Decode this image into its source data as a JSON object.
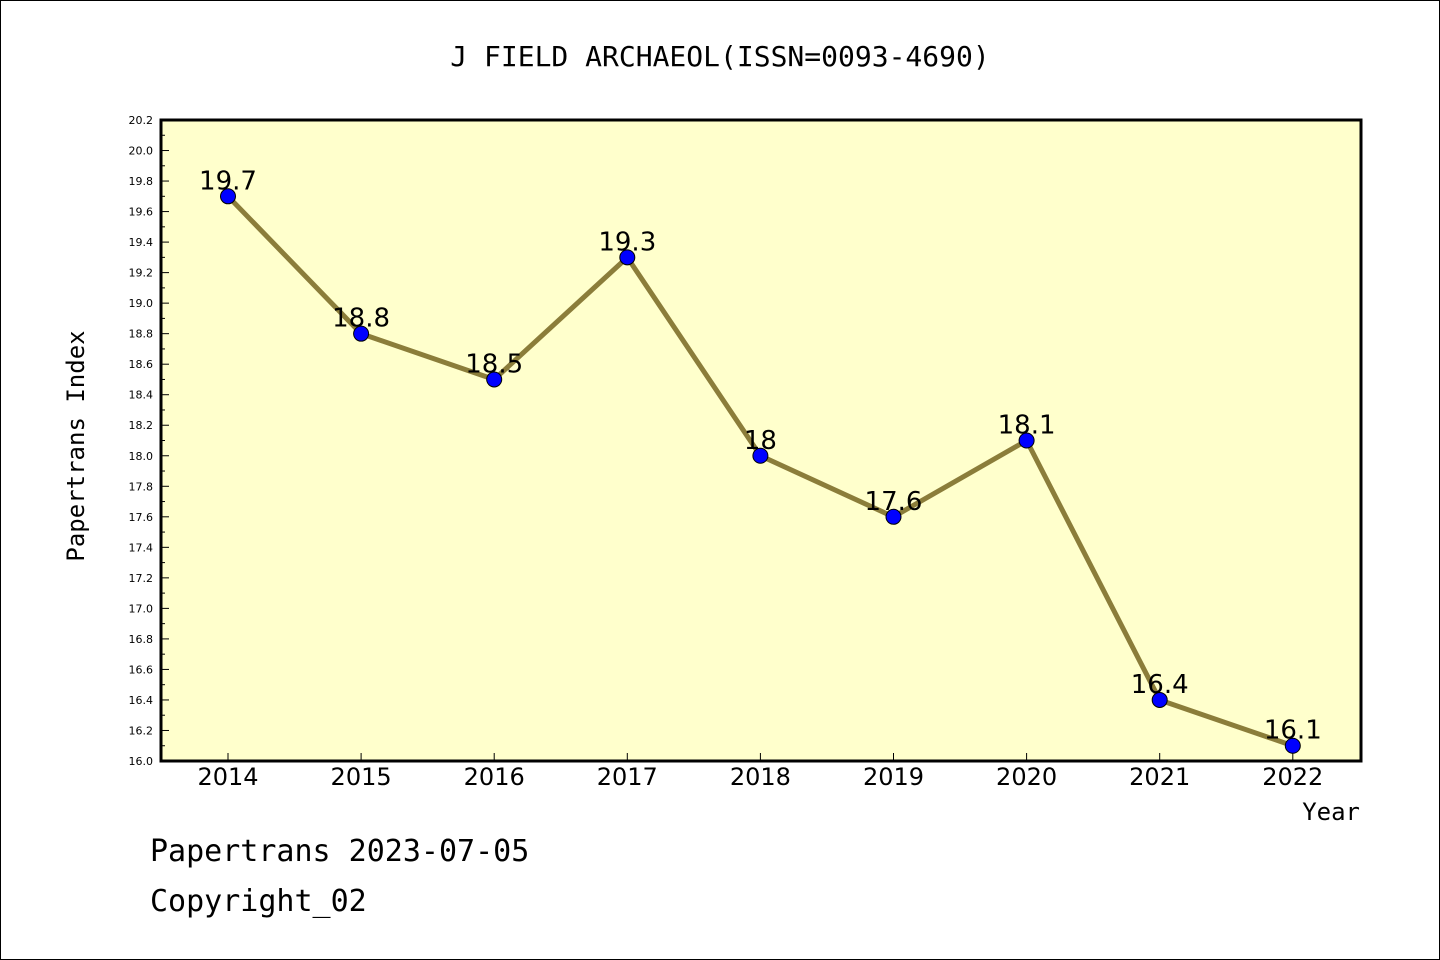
{
  "chart_data": {
    "type": "line",
    "title": "J FIELD ARCHAEOL(ISSN=0093-4690)",
    "xlabel": "Year",
    "ylabel": "Papertrans Index",
    "categories": [
      "2014",
      "2015",
      "2016",
      "2017",
      "2018",
      "2019",
      "2020",
      "2021",
      "2022"
    ],
    "series": [
      {
        "values": [
          19.7,
          18.8,
          18.5,
          19.3,
          18.0,
          17.6,
          18.1,
          16.4,
          16.1
        ],
        "labels": [
          "19.7",
          "18.8",
          "18.5",
          "19.3",
          "18",
          "17.6",
          "18.1",
          "16.4",
          "16.1"
        ]
      }
    ],
    "ylim": [
      16.0,
      20.2
    ],
    "yticks": [
      "16.0",
      "16.2",
      "16.4",
      "16.6",
      "16.8",
      "17.0",
      "17.2",
      "17.4",
      "17.6",
      "17.8",
      "18.0",
      "18.2",
      "18.4",
      "18.6",
      "18.8",
      "19.0",
      "19.2",
      "19.4",
      "19.6",
      "19.8",
      "20.0",
      "20.2"
    ],
    "grid": false,
    "colors": {
      "plot_background": "#ffffcc",
      "line": "#8b7d3a",
      "marker": "#0000ff"
    }
  },
  "footer": {
    "line1": "Papertrans 2023-07-05",
    "line2": "Copyright_02"
  }
}
